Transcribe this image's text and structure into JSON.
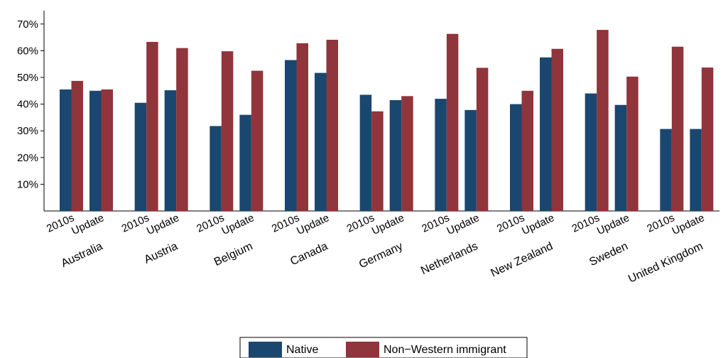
{
  "chart_data": {
    "type": "bar",
    "title": "",
    "xlabel": "",
    "ylabel": "",
    "ylim": [
      0,
      75
    ],
    "yticks": [
      10,
      20,
      30,
      40,
      50,
      60,
      70
    ],
    "ytick_labels": [
      "10%",
      "20%",
      "30%",
      "40%",
      "50%",
      "60%",
      "70%"
    ],
    "grid": false,
    "legend_position": "bottom-center",
    "sub_labels": [
      "2010s",
      "Update"
    ],
    "groups": [
      "Australia",
      "Austria",
      "Belgium",
      "Canada",
      "Germany",
      "Netherlands",
      "New Zealand",
      "Sweden",
      "United Kingdom"
    ],
    "categories": [
      "Australia 2010s",
      "Australia Update",
      "Austria 2010s",
      "Austria Update",
      "Belgium 2010s",
      "Belgium Update",
      "Canada 2010s",
      "Canada Update",
      "Germany 2010s",
      "Germany Update",
      "Netherlands 2010s",
      "Netherlands Update",
      "New Zealand 2010s",
      "New Zealand Update",
      "Sweden 2010s",
      "Sweden Update",
      "United Kingdom 2010s",
      "United Kingdom Update"
    ],
    "series": [
      {
        "name": "Native",
        "color": "#1a476f",
        "values": [
          45.5,
          45.0,
          40.5,
          45.2,
          31.8,
          36.0,
          56.5,
          51.7,
          43.5,
          41.5,
          42.0,
          37.8,
          40.0,
          57.5,
          44.0,
          39.7,
          30.7,
          30.7
        ]
      },
      {
        "name": "Non−Western immigrant",
        "color": "#90353b",
        "values": [
          48.7,
          45.5,
          63.3,
          61.0,
          59.8,
          52.5,
          62.8,
          64.1,
          37.3,
          43.0,
          66.3,
          53.6,
          45.0,
          60.7,
          67.8,
          50.3,
          61.5,
          53.7
        ]
      }
    ]
  }
}
